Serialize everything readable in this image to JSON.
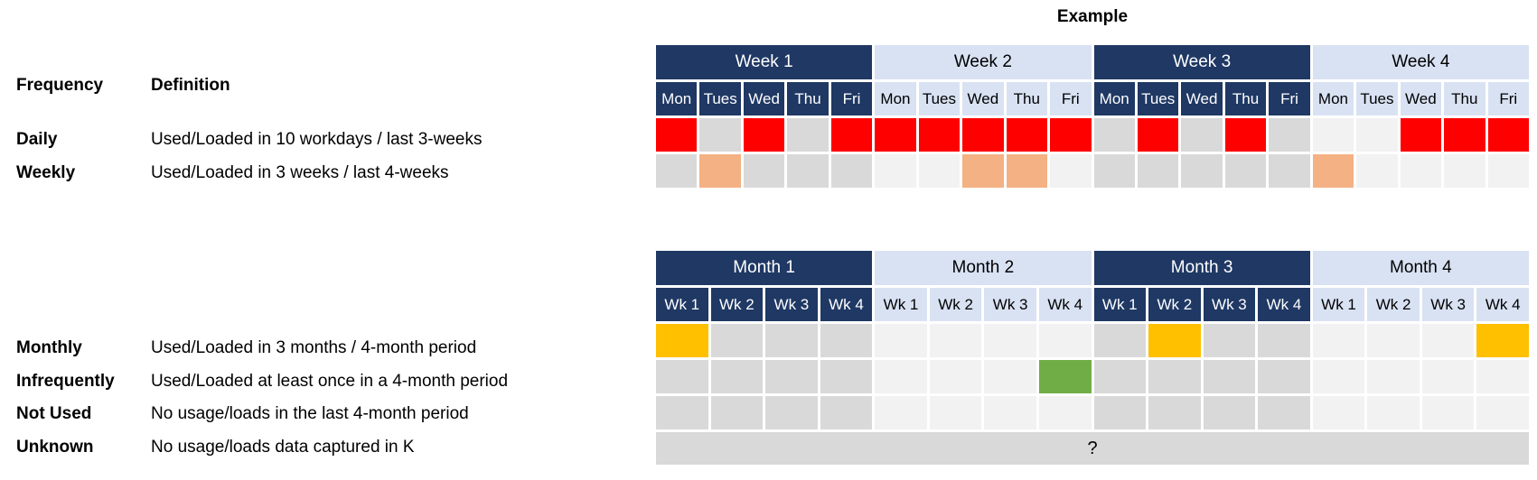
{
  "title": "Example",
  "colors": {
    "header_dark": "#1F3864",
    "header_light": "#D9E2F3",
    "red": "#FF0000",
    "peach": "#F4B183",
    "gold": "#FFC000",
    "green": "#70AD47",
    "gray": "#D9D9D9",
    "light": "#F2F2F2"
  },
  "legend": {
    "frequency_header": "Frequency",
    "definition_header": "Definition",
    "rows": [
      {
        "id": "daily",
        "label": "Daily",
        "definition": "Used/Loaded in 10 workdays / last 3-weeks"
      },
      {
        "id": "weekly",
        "label": "Weekly",
        "definition": "Used/Loaded in 3 weeks / last 4-weeks"
      },
      {
        "id": "monthly",
        "label": "Monthly",
        "definition": "Used/Loaded in 3 months / 4-month period"
      },
      {
        "id": "infrequently",
        "label": "Infrequently",
        "definition": "Used/Loaded at least once in a 4-month period"
      },
      {
        "id": "not-used",
        "label": "Not Used",
        "definition": "No usage/loads in the last 4-month period"
      },
      {
        "id": "unknown",
        "label": "Unknown",
        "definition": "No usage/loads data captured in K"
      }
    ]
  },
  "week_table": {
    "groups": [
      {
        "label": "Week 1",
        "theme": "dark"
      },
      {
        "label": "Week 2",
        "theme": "light"
      },
      {
        "label": "Week 3",
        "theme": "dark"
      },
      {
        "label": "Week 4",
        "theme": "light"
      }
    ],
    "col_labels": [
      "Mon",
      "Tues",
      "Wed",
      "Thu",
      "Fri"
    ],
    "rows": [
      {
        "name": "daily",
        "cells": [
          "red",
          "gray",
          "red",
          "gray",
          "red",
          "red",
          "red",
          "red",
          "red",
          "red",
          "gray",
          "red",
          "gray",
          "red",
          "gray",
          "light",
          "light",
          "red",
          "red",
          "red"
        ]
      },
      {
        "name": "weekly",
        "cells": [
          "gray",
          "peach",
          "gray",
          "gray",
          "gray",
          "light",
          "light",
          "peach",
          "peach",
          "light",
          "gray",
          "gray",
          "gray",
          "gray",
          "gray",
          "peach",
          "light",
          "light",
          "light",
          "light"
        ]
      }
    ]
  },
  "month_table": {
    "groups": [
      {
        "label": "Month 1",
        "theme": "dark"
      },
      {
        "label": "Month 2",
        "theme": "light"
      },
      {
        "label": "Month 3",
        "theme": "dark"
      },
      {
        "label": "Month 4",
        "theme": "light"
      }
    ],
    "col_labels": [
      "Wk 1",
      "Wk 2",
      "Wk 3",
      "Wk 4"
    ],
    "rows": [
      {
        "name": "monthly",
        "cells": [
          "gold",
          "gray",
          "gray",
          "gray",
          "light",
          "light",
          "light",
          "light",
          "gray",
          "gold",
          "gray",
          "gray",
          "light",
          "light",
          "light",
          "gold"
        ]
      },
      {
        "name": "infrequently",
        "cells": [
          "gray",
          "gray",
          "gray",
          "gray",
          "light",
          "light",
          "light",
          "green",
          "gray",
          "gray",
          "gray",
          "gray",
          "light",
          "light",
          "light",
          "light"
        ]
      },
      {
        "name": "not-used",
        "cells": [
          "gray",
          "gray",
          "gray",
          "gray",
          "light",
          "light",
          "light",
          "light",
          "gray",
          "gray",
          "gray",
          "gray",
          "light",
          "light",
          "light",
          "light"
        ]
      }
    ],
    "unknown_label": "?"
  }
}
